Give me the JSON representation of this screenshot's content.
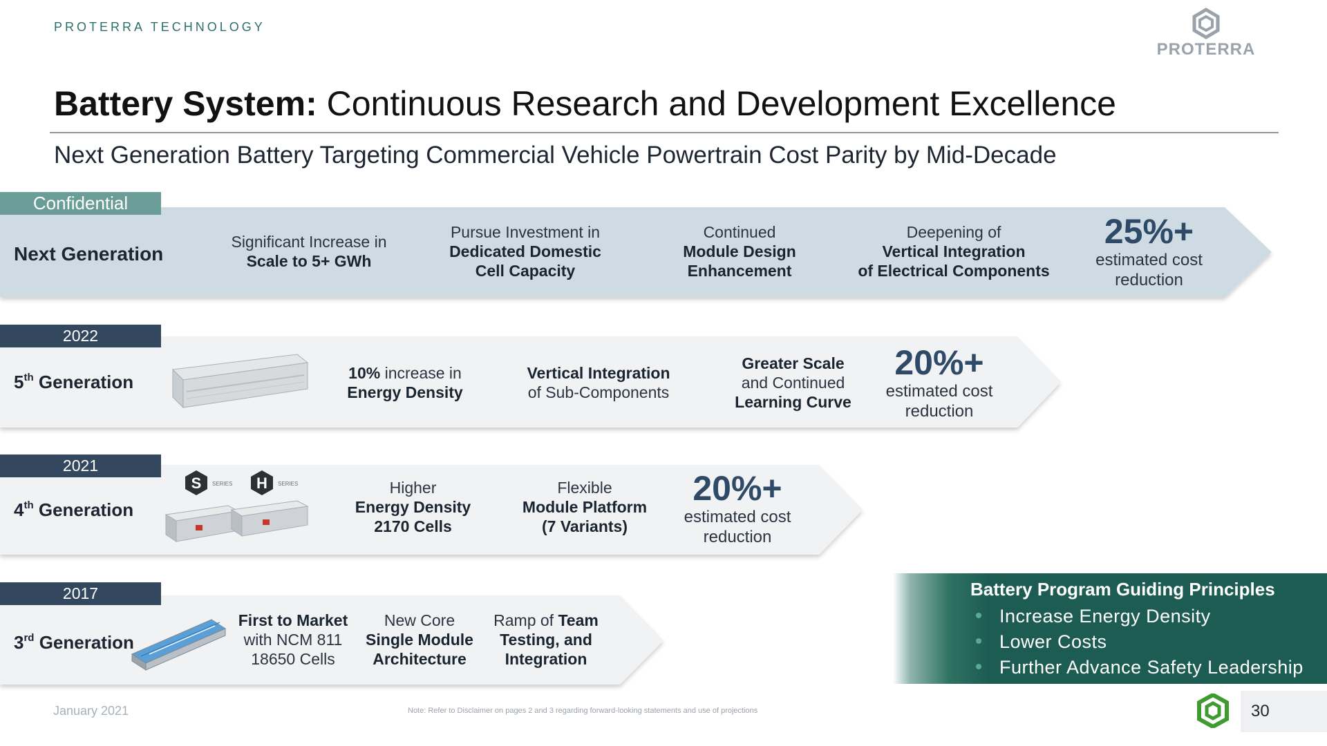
{
  "header": {
    "eyebrow": "PROTERRA TECHNOLOGY",
    "logo_text": "PROTERRA",
    "title_bold": "Battery System:",
    "title_rest": " Continuous Research and Development Excellence",
    "subtitle": "Next Generation Battery Targeting Commercial Vehicle Powertrain Cost Parity by Mid-Decade"
  },
  "rows": {
    "next": {
      "tag": "Confidential",
      "label": "Next Generation",
      "c1_a": "Significant Increase in",
      "c1_b": "Scale to 5+ GWh",
      "c2_a": "Pursue Investment in",
      "c2_b": "Dedicated Domestic",
      "c2_c": "Cell Capacity",
      "c3_a": "Continued",
      "c3_b": "Module Design",
      "c3_c": "Enhancement",
      "c4_a": "Deepening of",
      "c4_b": "Vertical Integration",
      "c4_c": "of Electrical Components",
      "pct": "25%+",
      "est_a": "estimated cost",
      "est_b": "reduction"
    },
    "gen5": {
      "tag": "2022",
      "label_num": "5",
      "label_sup": "th",
      "label_rest": " Generation",
      "c1_bold": "10%",
      "c1_a": " increase in",
      "c1_b": "Energy Density",
      "c2_a": "Vertical Integration",
      "c2_b": "of Sub-Components",
      "c3_a": "Greater Scale",
      "c3_b": "and Continued",
      "c3_c": "Learning Curve",
      "pct": "20%+",
      "est_a": "estimated cost",
      "est_b": "reduction"
    },
    "gen4": {
      "tag": "2021",
      "label_num": "4",
      "label_sup": "th",
      "label_rest": " Generation",
      "badge_s": "S",
      "badge_h": "H",
      "series": "SERIES",
      "c1_a": "Higher",
      "c1_b": "Energy Density",
      "c1_c": "2170 Cells",
      "c2_a": "Flexible",
      "c2_b": "Module Platform",
      "c2_c": "(7 Variants)",
      "pct": "20%+",
      "est_a": "estimated cost",
      "est_b": "reduction"
    },
    "gen3": {
      "tag": "2017",
      "label_num": "3",
      "label_sup": "rd",
      "label_rest": " Generation",
      "c1_a": "First to Market",
      "c1_b": "with NCM 811",
      "c1_c": "18650 Cells",
      "c2_a": "New Core",
      "c2_b": "Single Module",
      "c2_c": "Architecture",
      "c3_a": "Ramp of ",
      "c3_a_bold": "Team",
      "c3_b": "Testing, and",
      "c3_c": "Integration"
    }
  },
  "guiding": {
    "title": "Battery Program Guiding Principles",
    "items": [
      "Increase Energy Density",
      "Lower Costs",
      "Further Advance Safety Leadership"
    ]
  },
  "footer": {
    "date": "January 2021",
    "note": "Note: Refer to Disclaimer on pages 2 and 3 regarding forward-looking statements and use of projections",
    "page": "30"
  },
  "colors": {
    "next_band": "#cfdbe3",
    "gen_band": "#f1f2f3",
    "tag_dark": "#33485e",
    "tag_conf": "#6a9d98",
    "guiding_bg": "#1d5c52",
    "accent_green": "#3f9a2f"
  }
}
